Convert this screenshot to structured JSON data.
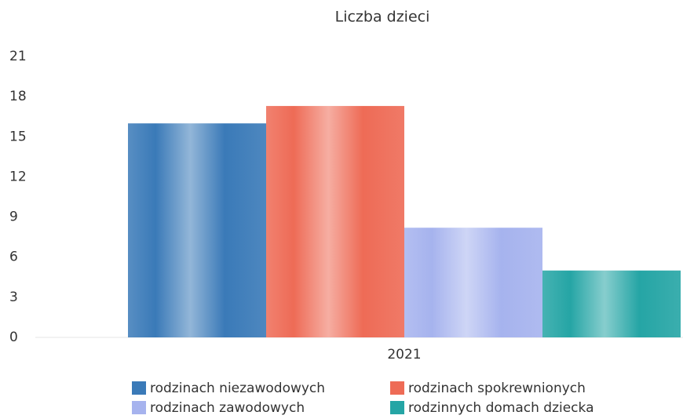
{
  "chart_data": {
    "type": "bar",
    "title": "Liczba dzieci",
    "categories": [
      "2021"
    ],
    "series": [
      {
        "name": "rodzinach niezawodowych",
        "color": "#3a7ab8",
        "values": [
          16
        ]
      },
      {
        "name": "rodzinach spokrewnionych",
        "color": "#ee6b56",
        "values": [
          17.3
        ]
      },
      {
        "name": "rodzinach zawodowych",
        "color": "#a6b3ee",
        "values": [
          8.2
        ]
      },
      {
        "name": "rodzinnych domach dziecka",
        "color": "#25a5a5",
        "values": [
          5
        ]
      }
    ],
    "ylim": [
      0,
      21
    ],
    "yticks": [
      0,
      3,
      6,
      9,
      12,
      15,
      18,
      21
    ],
    "grid": false
  }
}
